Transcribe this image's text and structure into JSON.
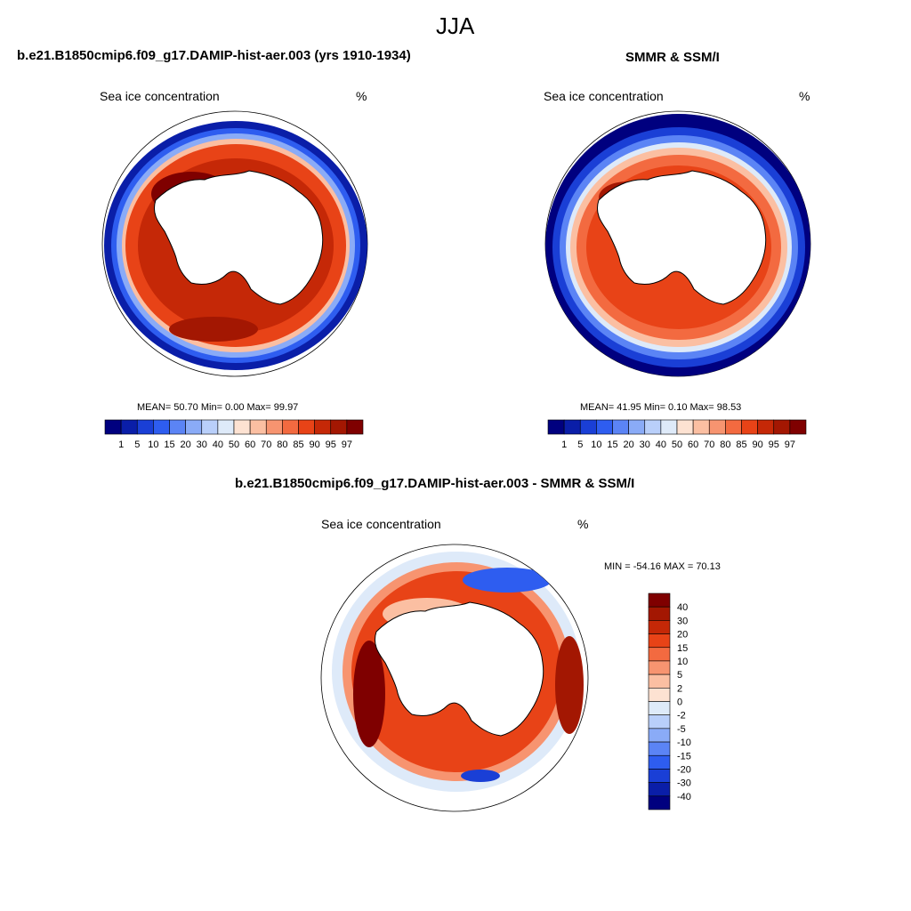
{
  "season": "JJA",
  "panels": {
    "model": {
      "title": "b.e21.B1850cmip6.f09_g17.DAMIP-hist-aer.003 (yrs 1910-1934)",
      "field": "Sea ice concentration",
      "units": "%",
      "stats": "MEAN=  50.70  Min=   0.00  Max=  99.97"
    },
    "obs": {
      "title": "SMMR & SSM/I",
      "field": "Sea ice concentration",
      "units": "%",
      "stats": "MEAN=  41.95  Min=   0.10  Max=  98.53"
    },
    "diff": {
      "title": "b.e21.B1850cmip6.f09_g17.DAMIP-hist-aer.003 - SMMR & SSM/I",
      "field": "Sea ice concentration",
      "units": "%",
      "stats": "MIN = -54.16 MAX =  70.13"
    }
  },
  "colorbars": {
    "abs_labels": [
      "1",
      "5",
      "10",
      "15",
      "20",
      "30",
      "40",
      "50",
      "60",
      "70",
      "80",
      "85",
      "90",
      "95",
      "97"
    ],
    "abs_colors": [
      "#00007f",
      "#0a1ea8",
      "#1a3fd6",
      "#2e5df0",
      "#5b84f5",
      "#8aabf7",
      "#b9cffa",
      "#deeaf9",
      "#fde2d2",
      "#fbbfa2",
      "#f79470",
      "#f36a40",
      "#e84317",
      "#c52807",
      "#a31702",
      "#7f0000"
    ],
    "diff_labels": [
      "40",
      "30",
      "20",
      "15",
      "10",
      "5",
      "2",
      "0",
      "-2",
      "-5",
      "-10",
      "-15",
      "-20",
      "-30",
      "-40"
    ],
    "diff_colors": [
      "#7f0000",
      "#a31702",
      "#c52807",
      "#e84317",
      "#f36a40",
      "#f79470",
      "#fbbfa2",
      "#fde2d2",
      "#deeaf9",
      "#b9cffa",
      "#8aabf7",
      "#5b84f5",
      "#2e5df0",
      "#1a3fd6",
      "#0a1ea8",
      "#00007f"
    ]
  }
}
